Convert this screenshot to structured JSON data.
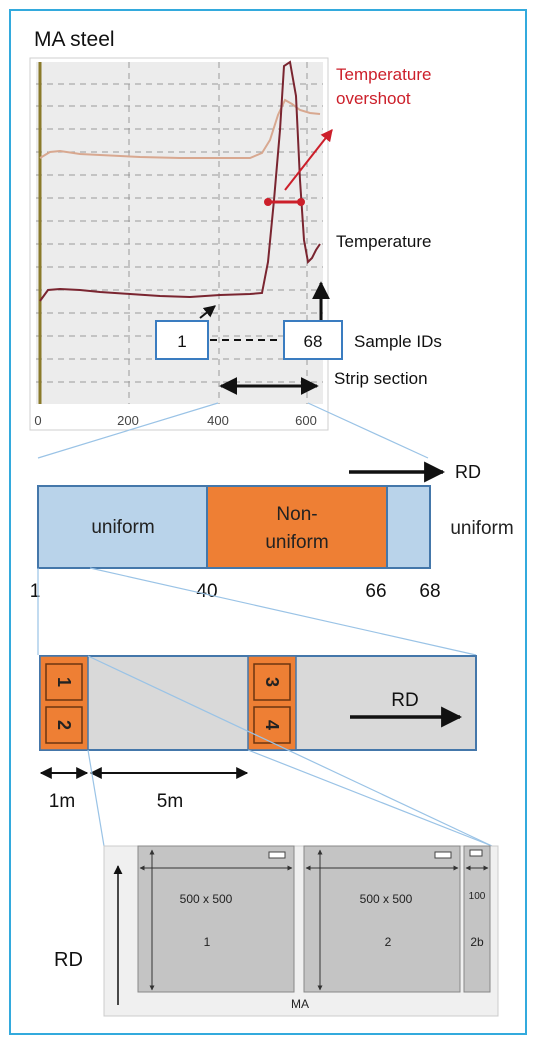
{
  "title": "MA steel",
  "colors": {
    "frame": "#33aadd",
    "plot_bg": "#ececec",
    "temp_line": "#7a2530",
    "aux_line": "#d8a890",
    "overshoot": "#cc1f2a",
    "uniform_fill": "#b9d3ea",
    "nonuniform_fill": "#ee7f34",
    "gray_fill": "#d9d9d9",
    "outline": "#4477aa"
  },
  "plot": {
    "x_ticks": [
      "0",
      "200",
      "400",
      "600"
    ],
    "label_overshoot": [
      "Temperature",
      "overshoot"
    ],
    "label_temperature": "Temperature",
    "label_sample_ids": "Sample IDs",
    "label_strip_section": "Strip section",
    "sample_id_start": "1",
    "sample_id_end": "68"
  },
  "strip": {
    "rd_label": "RD",
    "seg_uniform_left": "uniform",
    "seg_nonuniform": [
      "Non-",
      "uniform"
    ],
    "seg_uniform_right": "uniform",
    "ticks": [
      "1",
      "40",
      "66",
      "68"
    ]
  },
  "section": {
    "samples": [
      "1",
      "2",
      "3",
      "4"
    ],
    "rd_label": "RD",
    "dim_1": "1m",
    "dim_5": "5m"
  },
  "plate": {
    "rd_label": "RD",
    "panel_size": "500 x 500",
    "panel1_id": "1",
    "panel2_id": "2",
    "strip_dim": "100",
    "strip_id": "2b",
    "material": "MA"
  }
}
